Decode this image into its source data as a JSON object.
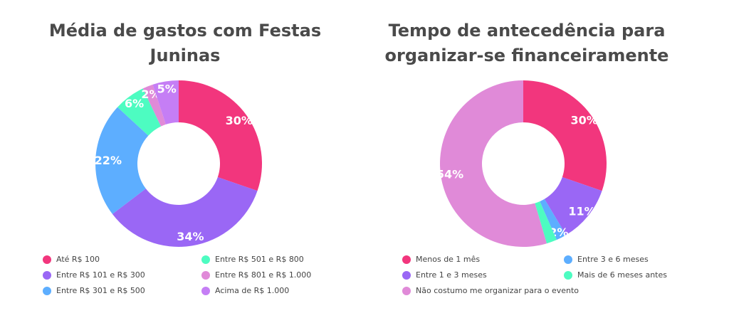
{
  "chart_data": [
    {
      "type": "pie",
      "title": "Média de gastos com Festas Juninas",
      "slices": [
        {
          "label": "Até R$ 100",
          "value": 30,
          "display": "30%",
          "color": "#f2367d"
        },
        {
          "label": "Entre R$ 101 e R$ 300",
          "value": 34,
          "display": "34%",
          "color": "#9a67f5"
        },
        {
          "label": "Entre R$ 301 e R$ 500",
          "value": 22,
          "display": "22%",
          "color": "#5daeff"
        },
        {
          "label": "Entre R$ 501 e R$ 800",
          "value": 6,
          "display": "6%",
          "color": "#4dfcc1"
        },
        {
          "label": "Entre R$ 801 e R$ 1.000",
          "value": 2,
          "display": "2%",
          "color": "#e08ad8"
        },
        {
          "label": "Acima de R$ 1.000",
          "value": 5,
          "display": "5%",
          "color": "#c57ef5"
        }
      ],
      "legend_placement": "bottom"
    },
    {
      "type": "pie",
      "title": "Tempo de antecedência para organizar-se financeiramente",
      "slices": [
        {
          "label": "Menos de 1 mês",
          "value": 30,
          "display": "30%",
          "color": "#f2367d"
        },
        {
          "label": "Entre 1 e 3 meses",
          "value": 11,
          "display": "11%",
          "color": "#9a67f5"
        },
        {
          "label": "Entre 3 e 6 meses",
          "value": 2,
          "display": "2%",
          "color": "#5daeff"
        },
        {
          "label": "Mais de 6 meses antes",
          "value": 2,
          "display": "",
          "color": "#4dfcc1"
        },
        {
          "label": "Não costumo me organizar para o evento",
          "value": 54,
          "display": "54%",
          "color": "#e08ad8"
        }
      ],
      "legend_placement": "bottom"
    }
  ]
}
